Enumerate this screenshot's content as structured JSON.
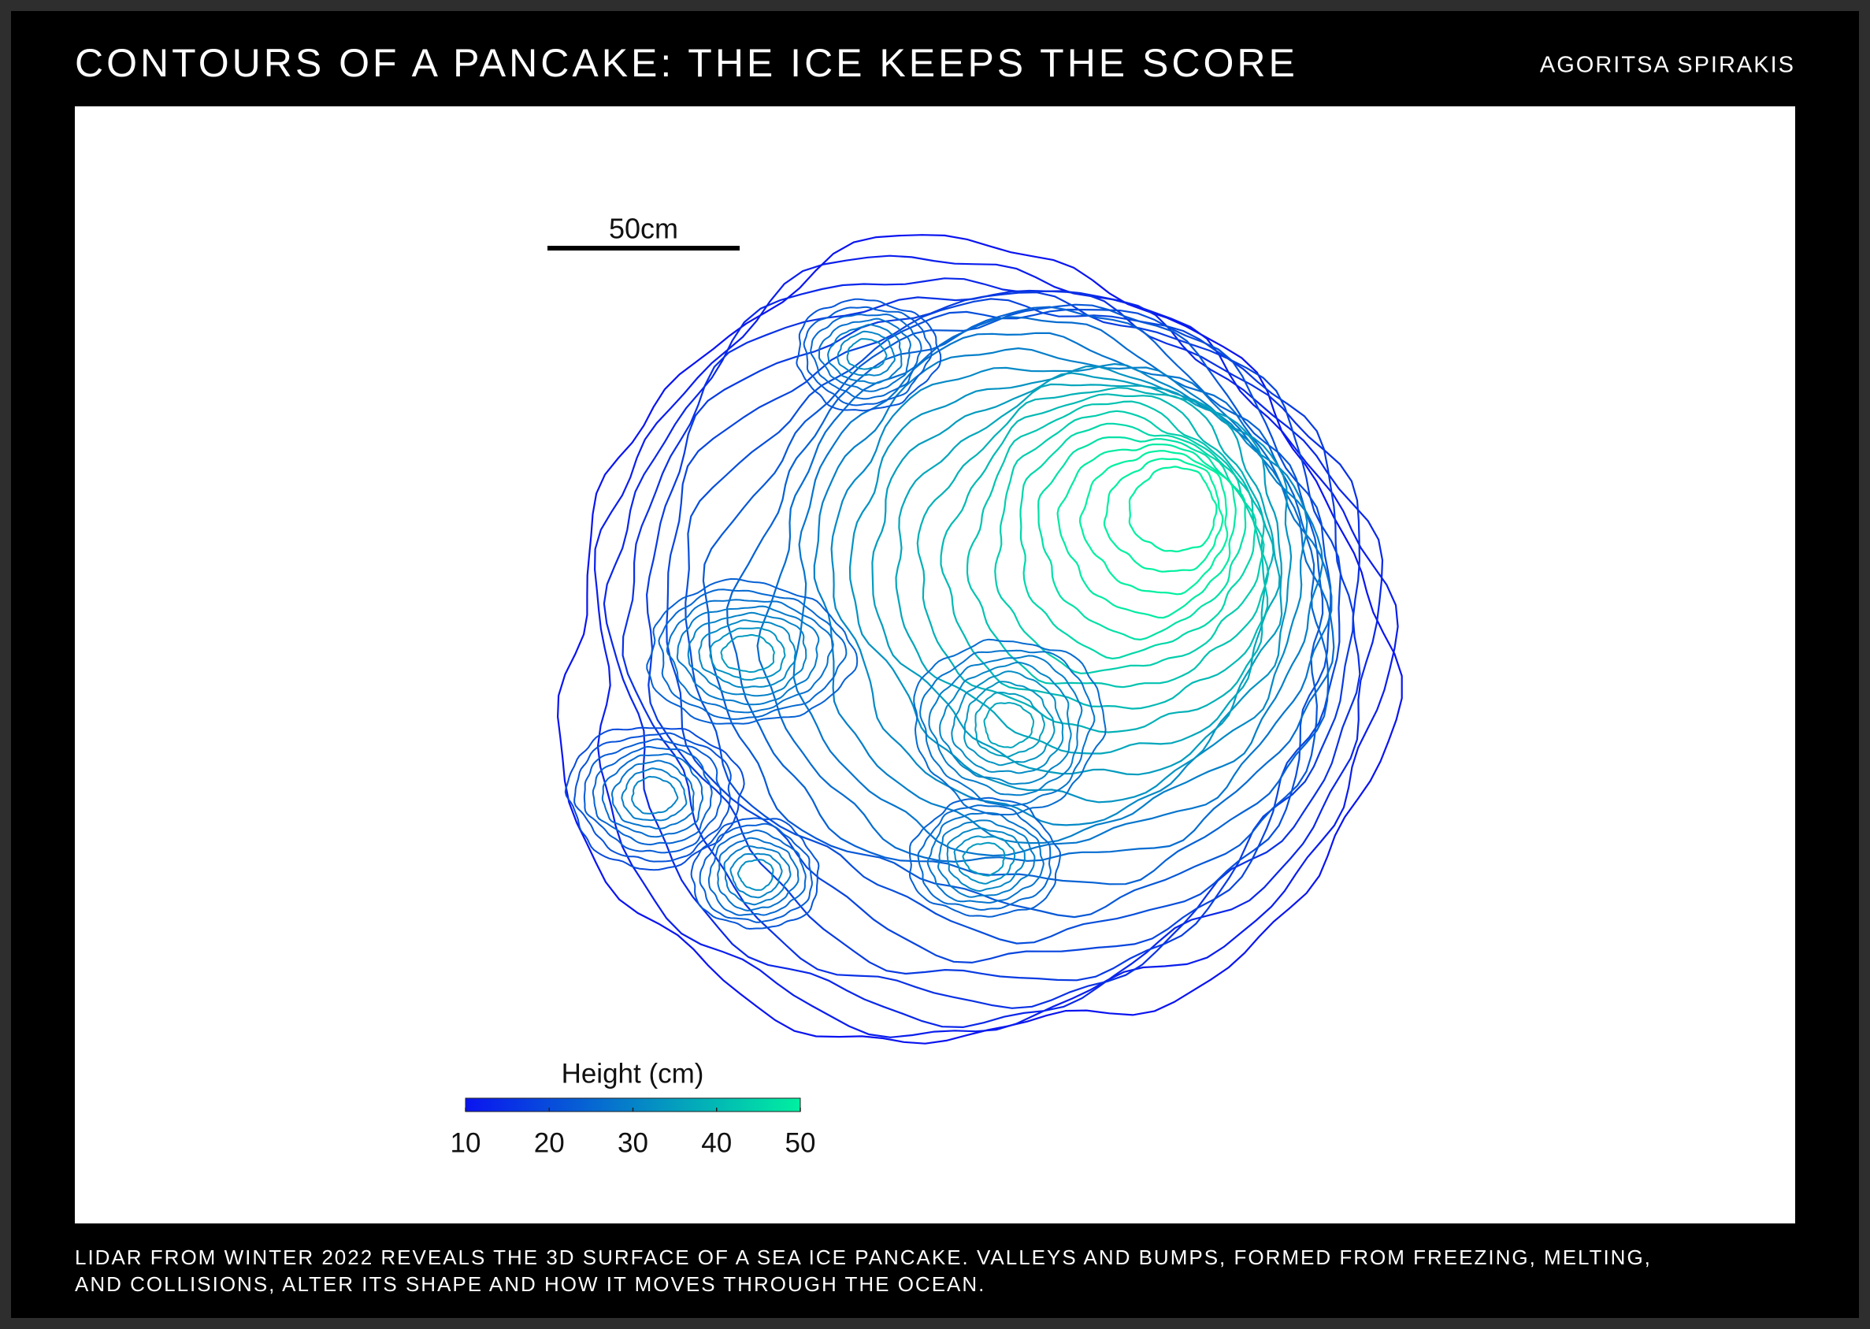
{
  "chart_data": {
    "type": "contour",
    "title": "CONTOURS OF A PANCAKE: THE ICE KEEPS THE SCORE",
    "author": "AGORITSA SPIRAKIS",
    "scale_label": "50cm",
    "colorbar_label": "Height (cm)",
    "clim": [
      10,
      50
    ],
    "cticks": [
      10,
      20,
      30,
      40,
      50
    ],
    "colors": [
      "#0a14f0",
      "#00f0a0"
    ],
    "caption": [
      "LIDAR FROM WINTER 2022 REVEALS THE 3D SURFACE OF A SEA ICE PANCAKE. VALLEYS AND BUMPS, FORMED FROM FREEZING, MELTING,",
      "AND COLLISIONS, ALTER ITS SHAPE AND HOW IT MOVES THROUGH THE OCEAN."
    ]
  }
}
